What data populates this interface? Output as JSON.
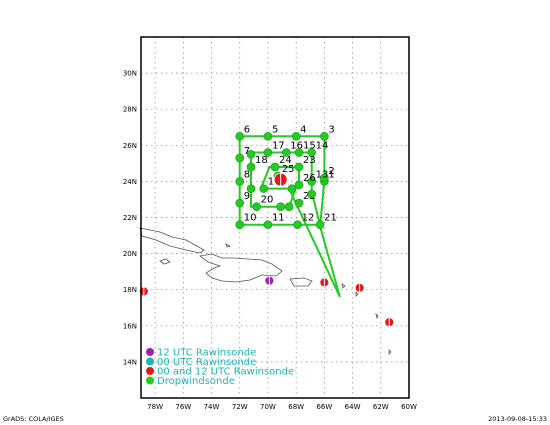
{
  "footer": {
    "left": "GrADS: COLA/IGES",
    "right": "2013-09-08-15:33"
  },
  "map": {
    "lon_range": [
      -79,
      -60
    ],
    "lat_range": [
      12,
      32
    ],
    "x_tick_labels": [
      {
        "lon": -78,
        "label": "78W"
      },
      {
        "lon": -76,
        "label": "76W"
      },
      {
        "lon": -74,
        "label": "74W"
      },
      {
        "lon": -72,
        "label": "72W"
      },
      {
        "lon": -70,
        "label": "70W"
      },
      {
        "lon": -68,
        "label": "68W"
      },
      {
        "lon": -66,
        "label": "66W"
      },
      {
        "lon": -64,
        "label": "64W"
      },
      {
        "lon": -62,
        "label": "62W"
      },
      {
        "lon": -60,
        "label": "60W"
      }
    ],
    "y_tick_labels": [
      {
        "lat": 14,
        "label": "14N"
      },
      {
        "lat": 16,
        "label": "16N"
      },
      {
        "lat": 18,
        "label": "18N"
      },
      {
        "lat": 20,
        "label": "20N"
      },
      {
        "lat": 22,
        "label": "22N"
      },
      {
        "lat": 24,
        "label": "24N"
      },
      {
        "lat": 26,
        "label": "26N"
      },
      {
        "lat": 28,
        "label": "28N"
      },
      {
        "lat": 30,
        "label": "30N"
      }
    ],
    "colors": {
      "dropwindsonde": "#22cc22",
      "rawin_12": "#9a22b4",
      "rawin_00_12": "#e01a1a",
      "legend_text": "#1fb5b5",
      "grid": "#888888"
    }
  },
  "legend": [
    {
      "label": "12 UTC Rawinsonde",
      "color": "#9a22b4"
    },
    {
      "label": "00 UTC Rawinsonde",
      "color": "#1fb5b5"
    },
    {
      "label": "00 and 12 UTC Rawinsonde",
      "color": "#e01a1a"
    },
    {
      "label": "Dropwindsonde",
      "color": "#22cc22"
    }
  ],
  "flight_track": [
    [
      -64.9,
      17.6
    ],
    [
      -66.3,
      21.5
    ],
    [
      -66.0,
      24.1
    ],
    [
      -66.0,
      26.5
    ],
    [
      -68.0,
      26.5
    ],
    [
      -70.0,
      26.5
    ],
    [
      -72.0,
      26.5
    ],
    [
      -72.0,
      21.6
    ],
    [
      -70.0,
      21.6
    ],
    [
      -68.0,
      21.6
    ],
    [
      -66.3,
      21.6
    ],
    [
      -66.9,
      23.4
    ],
    [
      -66.9,
      25.6
    ],
    [
      -68.9,
      25.6
    ],
    [
      -71.2,
      25.6
    ],
    [
      -71.2,
      22.6
    ],
    [
      -68.5,
      22.6
    ],
    [
      -67.8,
      24.1
    ],
    [
      -67.8,
      24.8
    ],
    [
      -69.9,
      24.8
    ],
    [
      -70.5,
      23.6
    ],
    [
      -68.5,
      23.6
    ],
    [
      -64.9,
      17.6
    ]
  ],
  "dropwindsondes": [
    {
      "id": "1",
      "lon": -66.0,
      "lat": 24.0
    },
    {
      "id": "2",
      "lon": -66.0,
      "lat": 24.2
    },
    {
      "id": "3",
      "lon": -66.0,
      "lat": 26.5
    },
    {
      "id": "4",
      "lon": -68.0,
      "lat": 26.5
    },
    {
      "id": "5",
      "lon": -70.0,
      "lat": 26.5
    },
    {
      "id": "6",
      "lon": -72.0,
      "lat": 26.5
    },
    {
      "id": "7",
      "lon": -72.0,
      "lat": 25.3
    },
    {
      "id": "8",
      "lon": -72.0,
      "lat": 24.0
    },
    {
      "id": "9",
      "lon": -72.0,
      "lat": 22.8
    },
    {
      "id": "10",
      "lon": -72.0,
      "lat": 21.6
    },
    {
      "id": "11",
      "lon": -70.0,
      "lat": 21.6
    },
    {
      "id": "12",
      "lon": -67.9,
      "lat": 21.6
    },
    {
      "id": "21",
      "lon": -66.3,
      "lat": 21.6
    },
    {
      "id": "14",
      "lon": -66.9,
      "lat": 25.6
    },
    {
      "id": "15",
      "lon": -67.8,
      "lat": 25.6
    },
    {
      "id": "16",
      "lon": -68.7,
      "lat": 25.6
    },
    {
      "id": "17",
      "lon": -70.0,
      "lat": 25.6
    },
    {
      "id": "18",
      "lon": -71.2,
      "lat": 24.8
    },
    {
      "id": "24",
      "lon": -69.5,
      "lat": 24.8
    },
    {
      "id": "23",
      "lon": -67.8,
      "lat": 24.8
    },
    {
      "id": "13",
      "lon": -66.9,
      "lat": 24.0
    },
    {
      "id": "26",
      "lon": -67.8,
      "lat": 23.8
    },
    {
      "id": "22",
      "lon": -67.8,
      "lat": 22.8
    },
    {
      "id": "19",
      "lon": -70.3,
      "lat": 23.6
    },
    {
      "id": "20",
      "lon": -70.8,
      "lat": 22.6
    },
    {
      "id": "25",
      "lon": -69.3,
      "lat": 24.3
    },
    {
      "id": "",
      "lon": -71.2,
      "lat": 23.6
    },
    {
      "id": "",
      "lon": -69.1,
      "lat": 22.6
    },
    {
      "id": "",
      "lon": -68.5,
      "lat": 22.6
    },
    {
      "id": "",
      "lon": -66.9,
      "lat": 23.3
    },
    {
      "id": "",
      "lon": -68.3,
      "lat": 23.6
    },
    {
      "id": "",
      "lon": -71.2,
      "lat": 25.5
    }
  ],
  "rawinsondes": [
    {
      "type": "00_12",
      "lon": -78.8,
      "lat": 17.9
    },
    {
      "type": "00_12",
      "lon": -66.0,
      "lat": 18.4
    },
    {
      "type": "00_12",
      "lon": -63.5,
      "lat": 18.1
    },
    {
      "type": "00_12",
      "lon": -61.4,
      "lat": 16.2
    },
    {
      "type": "00_12",
      "lon": -69.1,
      "lat": 24.1
    },
    {
      "type": "12",
      "lon": -69.9,
      "lat": 18.5
    }
  ]
}
